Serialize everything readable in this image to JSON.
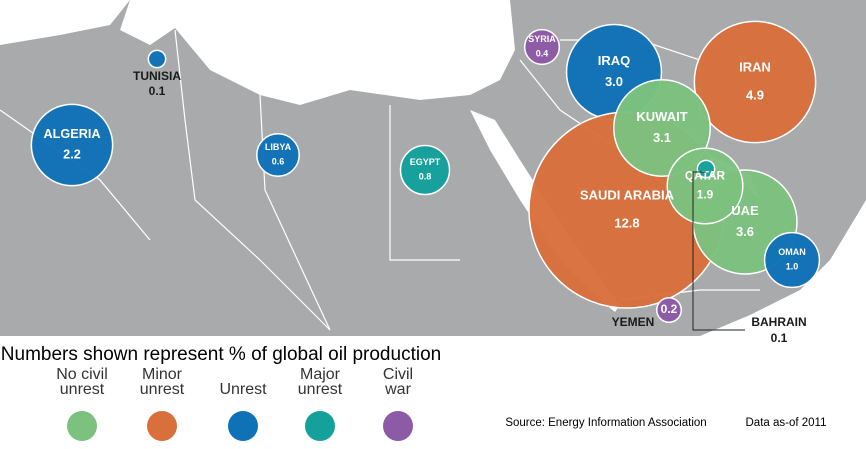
{
  "map": {
    "caption": "Numbers shown represent % of global oil production",
    "legend": [
      {
        "label": "No civil unrest",
        "color": "#7cc17e"
      },
      {
        "label": "Minor unrest",
        "color": "#d9703c"
      },
      {
        "label": "Unrest",
        "color": "#0f72b7"
      },
      {
        "label": "Major unrest",
        "color": "#14a19b"
      },
      {
        "label": "Civil war",
        "color": "#8d5aa6"
      }
    ],
    "bubbles": [
      {
        "name": "ALGERIA",
        "value": 2.2,
        "value_label": "2.2",
        "color": "#0f72b7"
      },
      {
        "name": "TUNISIA",
        "value": 0.1,
        "value_label": "0.1",
        "color": "#0f72b7"
      },
      {
        "name": "LIBYA",
        "value": 0.6,
        "value_label": "0.6",
        "color": "#0f72b7"
      },
      {
        "name": "EGYPT",
        "value": 0.8,
        "value_label": "0.8",
        "color": "#14a19b"
      },
      {
        "name": "SYRIA",
        "value": 0.4,
        "value_label": "0.4",
        "color": "#8d5aa6"
      },
      {
        "name": "IRAQ",
        "value": 3.0,
        "value_label": "3.0",
        "color": "#0f72b7"
      },
      {
        "name": "IRAN",
        "value": 4.9,
        "value_label": "4.9",
        "color": "#d9703c"
      },
      {
        "name": "SAUDI ARABIA",
        "value": 12.8,
        "value_label": "12.8",
        "color": "#d9703c"
      },
      {
        "name": "KUWAIT",
        "value": 3.1,
        "value_label": "3.1",
        "color": "#7cc17e"
      },
      {
        "name": "UAE",
        "value": 3.6,
        "value_label": "3.6",
        "color": "#7cc17e"
      },
      {
        "name": "QATAR",
        "value": 1.9,
        "value_label": "1.9",
        "color": "#7cc17e"
      },
      {
        "name": "OMAN",
        "value": 1.0,
        "value_label": "1.0",
        "color": "#0f72b7"
      },
      {
        "name": "YEMEN",
        "value": 0.2,
        "value_label": "0.2",
        "color": "#8d5aa6"
      },
      {
        "name": "BAHRAIN",
        "value": 0.1,
        "value_label": "0.1",
        "color": "#14a19b"
      }
    ],
    "source": "Source:  Energy Information  Association",
    "data_note": "Data as-of 2011"
  }
}
